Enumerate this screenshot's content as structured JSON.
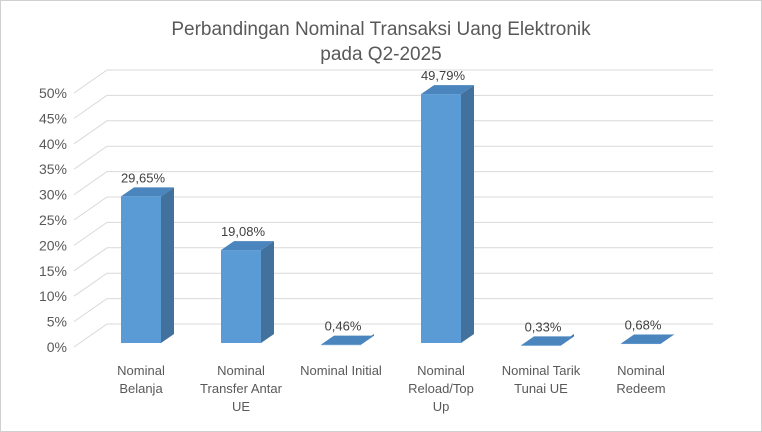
{
  "chart_data": {
    "type": "bar",
    "title_lines": [
      "Perbandingan Nominal Transaksi Uang Elektronik",
      "pada Q2-2025"
    ],
    "categories": [
      [
        "Nominal",
        "Belanja"
      ],
      [
        "Nominal",
        "Transfer Antar",
        "UE"
      ],
      [
        "Nominal Initial"
      ],
      [
        "Nominal",
        "Reload/Top",
        "Up"
      ],
      [
        "Nominal Tarik",
        "Tunai UE"
      ],
      [
        "Nominal",
        "Redeem"
      ]
    ],
    "values": [
      29.65,
      19.08,
      0.46,
      49.79,
      0.33,
      0.68
    ],
    "data_labels": [
      "29,65%",
      "19,08%",
      "0,46%",
      "49,79%",
      "0,33%",
      "0,68%"
    ],
    "y_ticks": [
      "0%",
      "5%",
      "10%",
      "15%",
      "20%",
      "25%",
      "30%",
      "35%",
      "40%",
      "45%",
      "50%"
    ],
    "ylim": [
      0,
      50
    ],
    "grid": true,
    "legend": "none",
    "colors": {
      "bar_front": "#5b9bd5",
      "bar_side": "#41719c",
      "bar_top": "#4a85bd",
      "grid": "#d9d9d9",
      "text": "#595959"
    }
  }
}
